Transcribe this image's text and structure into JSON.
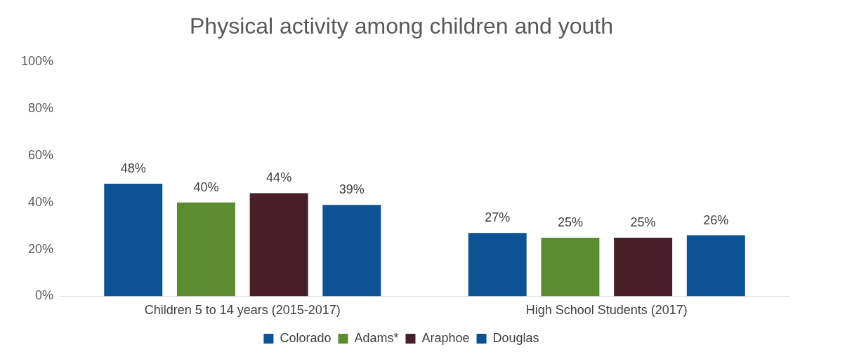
{
  "chart_data": {
    "type": "bar",
    "title": "Physical activity among children and youth",
    "categories": [
      "Children 5 to 14 years (2015-2017)",
      "High School Students (2017)"
    ],
    "series": [
      {
        "name": "Colorado",
        "color": "#0b5394",
        "values": [
          48,
          27
        ],
        "value_labels": [
          "48%",
          "27%"
        ]
      },
      {
        "name": "Adams*",
        "color": "#5b8c2f",
        "values": [
          40,
          25
        ],
        "value_labels": [
          "40%",
          "25%"
        ]
      },
      {
        "name": "Araphoe",
        "color": "#471f28",
        "values": [
          44,
          25
        ],
        "value_labels": [
          "44%",
          "25%"
        ]
      },
      {
        "name": "Douglas",
        "color": "#0b5394",
        "values": [
          39,
          26
        ],
        "value_labels": [
          "39%",
          "26%"
        ]
      }
    ],
    "ylim": [
      0,
      100
    ],
    "yticks": [
      {
        "value": 0,
        "label": "0%"
      },
      {
        "value": 20,
        "label": "20%"
      },
      {
        "value": 40,
        "label": "40%"
      },
      {
        "value": 60,
        "label": "60%"
      },
      {
        "value": 80,
        "label": "80%"
      },
      {
        "value": 100,
        "label": "100%"
      }
    ],
    "grid": false,
    "legend": "bottom"
  }
}
